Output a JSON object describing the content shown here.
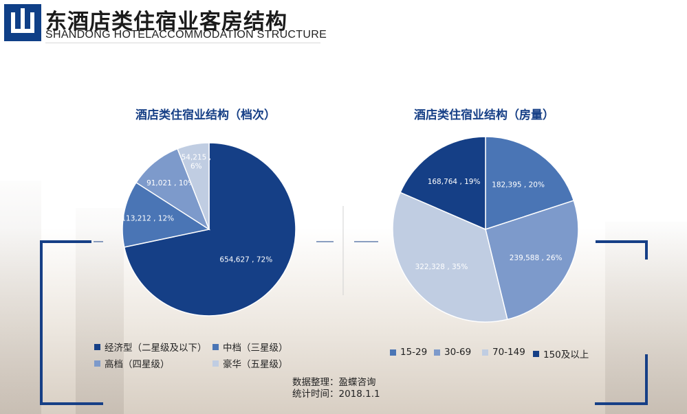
{
  "header": {
    "title_cn": "东酒店类住宿业客房结构",
    "title_en": "SHANDONG HOTELACCOMMODATION STRUCTURE",
    "logo_char": "山"
  },
  "source": {
    "line1": "数据整理：盈蝶咨询",
    "line2": "统计时间：2018.1.1"
  },
  "chart_data": [
    {
      "type": "pie",
      "title": "酒店类住宿业结构（档次）",
      "slices": [
        {
          "name": "经济型（二星级及以下）",
          "value": 654627,
          "percent": 72,
          "label": "654,627 , 72%",
          "color": "#153f86"
        },
        {
          "name": "中档（三星级）",
          "value": 113212,
          "percent": 12,
          "label": "113,212 , 12%",
          "color": "#4a75b5"
        },
        {
          "name": "高档（四星级）",
          "value": 91021,
          "percent": 10,
          "label": "91,021 , 10%",
          "color": "#7d9acb"
        },
        {
          "name": "豪华（五星级）",
          "value": 54215,
          "percent": 6,
          "label": "54,215 , 6%",
          "color": "#c0cde2"
        }
      ],
      "legend_position": "bottom"
    },
    {
      "type": "pie",
      "title": "酒店类住宿业结构（房量）",
      "slices": [
        {
          "name": "15-29",
          "value": 182395,
          "percent": 20,
          "label": "182,395 , 20%",
          "color": "#4a75b5"
        },
        {
          "name": "30-69",
          "value": 239588,
          "percent": 26,
          "label": "239,588 , 26%",
          "color": "#7d9acb"
        },
        {
          "name": "70-149",
          "value": 322328,
          "percent": 35,
          "label": "322,328 , 35%",
          "color": "#c0cde2"
        },
        {
          "name": "150及以上",
          "value": 168764,
          "percent": 19,
          "label": "168,764 , 19%",
          "color": "#153f86"
        }
      ],
      "legend_position": "bottom"
    }
  ]
}
